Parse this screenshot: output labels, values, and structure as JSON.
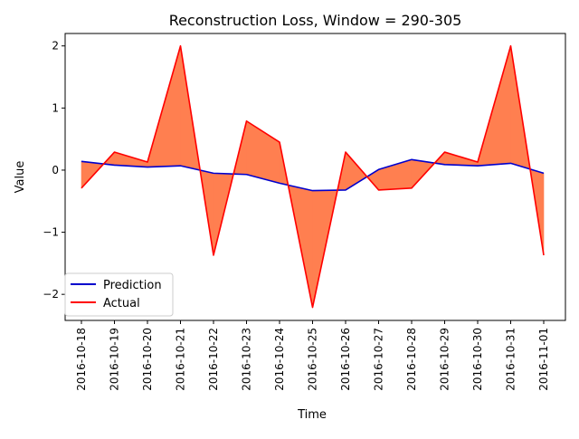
{
  "chart_data": {
    "type": "line",
    "title": "Reconstruction Loss, Window = 290-305",
    "xlabel": "Time",
    "ylabel": "Value",
    "categories": [
      "2016-10-18",
      "2016-10-19",
      "2016-10-20",
      "2016-10-21",
      "2016-10-22",
      "2016-10-23",
      "2016-10-24",
      "2016-10-25",
      "2016-10-26",
      "2016-10-27",
      "2016-10-28",
      "2016-10-29",
      "2016-10-30",
      "2016-10-31",
      "2016-11-01"
    ],
    "yticks": [
      -2,
      -1,
      0,
      1,
      2
    ],
    "ytick_labels": [
      "−2",
      "−1",
      "0",
      "1",
      "2"
    ],
    "ylim": [
      -2.42,
      2.2
    ],
    "series": [
      {
        "name": "Prediction",
        "color": "#0000cc",
        "values": [
          0.14,
          0.08,
          0.05,
          0.07,
          -0.05,
          -0.07,
          -0.21,
          -0.33,
          -0.32,
          0.01,
          0.17,
          0.09,
          0.07,
          0.11,
          -0.05
        ]
      },
      {
        "name": "Actual",
        "color": "#ff0000",
        "values": [
          -0.29,
          0.29,
          0.13,
          2.0,
          -1.37,
          0.79,
          0.45,
          -2.21,
          0.29,
          -0.32,
          -0.29,
          0.29,
          0.13,
          2.0,
          -1.37
        ]
      }
    ],
    "fill_between": {
      "color": "#ff7f50",
      "between": [
        "Prediction",
        "Actual"
      ]
    },
    "grid": false,
    "legend": "lower-left"
  }
}
